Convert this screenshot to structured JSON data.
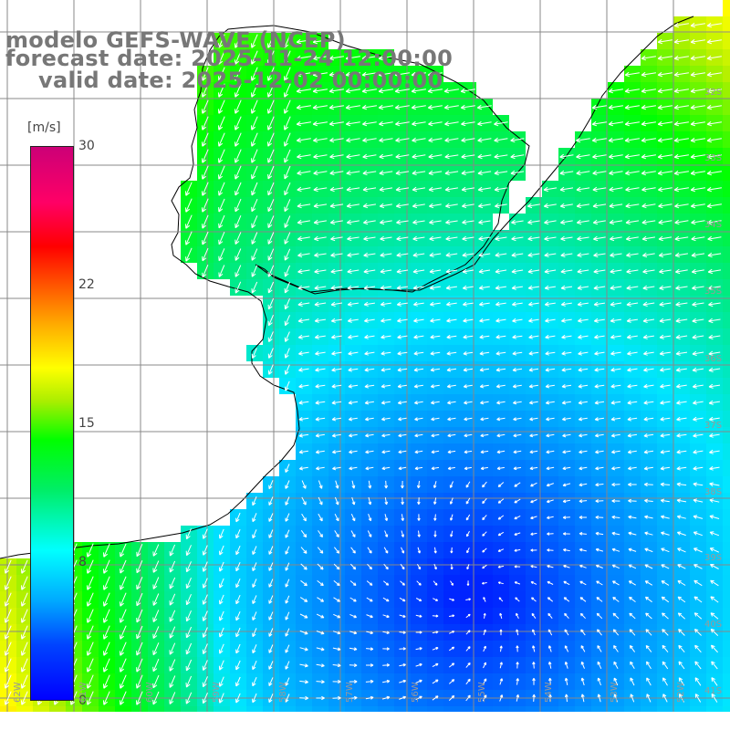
{
  "title": {
    "line1": "modelo GEFS-WAVE (NCEP)",
    "line2": "forecast date: 2025-11-24 12:00:00",
    "line3": "valid date: 2025-12-02 00:00:00"
  },
  "colorbar": {
    "unit": "[m/s]",
    "ticks": [
      "30",
      "22",
      "15",
      "8",
      "0"
    ],
    "min": 0,
    "max": 30,
    "colors": [
      "#0000ff",
      "#00aaff",
      "#00ffff",
      "#00ff00",
      "#ffff00",
      "#ff0000",
      "#cc0077"
    ]
  },
  "grid": {
    "lat_labels": [
      "32S",
      "33S",
      "34S",
      "35S",
      "36S",
      "37S",
      "38S",
      "39S",
      "40S",
      "41S"
    ],
    "lon_labels": [
      "62W",
      "61W",
      "60W",
      "59W",
      "58W",
      "57W",
      "56W",
      "55W",
      "54W",
      "53W",
      "52W"
    ]
  },
  "colors": {
    "land": "#ffffff",
    "grid_line": "#888888",
    "coast": "#000000",
    "arrow": "#ffffff",
    "label": "#777777"
  }
}
